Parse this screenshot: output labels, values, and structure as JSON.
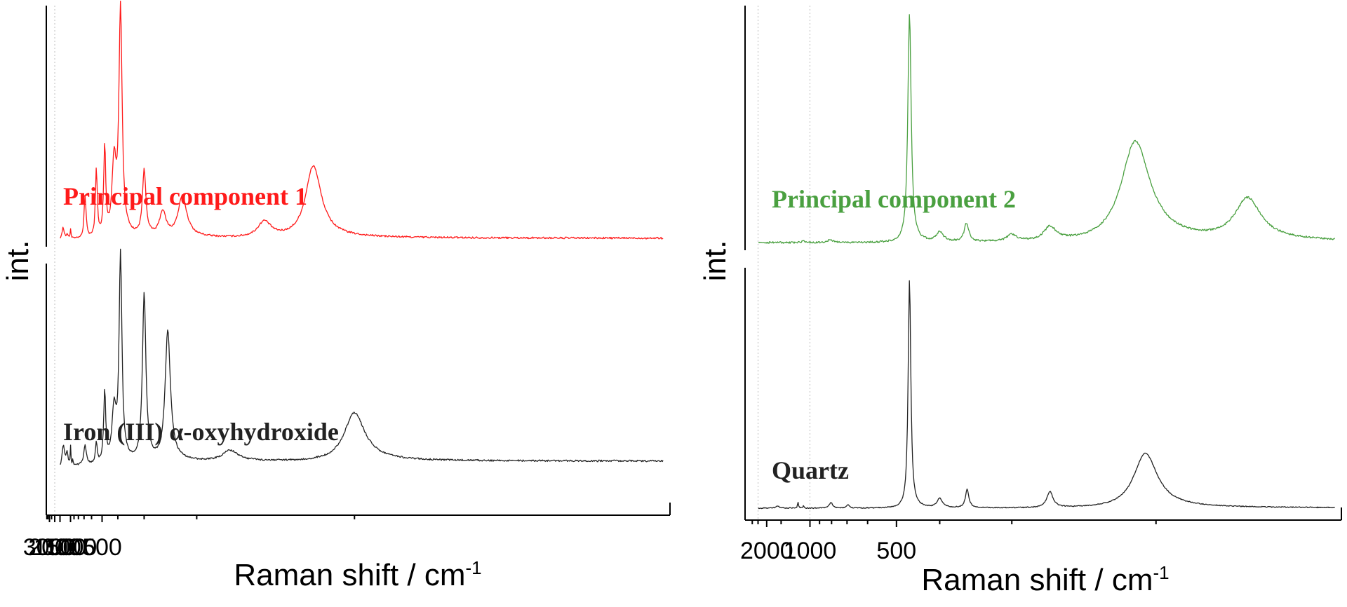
{
  "chart_data": [
    {
      "type": "line",
      "xlabel": "Raman shift / cm",
      "xlabel_sup": "-1",
      "ylabel": "int.",
      "x_axis": "reciprocal",
      "xlim": [
        4300,
        50
      ],
      "major_ticks": [
        3000,
        2000,
        1500,
        1000,
        500
      ],
      "tick_labels": [
        "3000",
        "2000",
        "1500",
        "1000",
        "500"
      ],
      "minor_ticks": [
        4000,
        3500,
        2500,
        900,
        800,
        700,
        600,
        400,
        300,
        200,
        100
      ],
      "grid": "dotted vertical at 2000",
      "series": [
        {
          "name": "Principal component 1",
          "color": "#ff1a1a",
          "baseline": 0.0,
          "noise": 0.004,
          "peaks": [
            {
              "x": 1310,
              "h": 0.055,
              "w": 60
            },
            {
              "x": 1120,
              "h": 0.02,
              "w": 35
            },
            {
              "x": 1000,
              "h": 0.045,
              "w": 14
            },
            {
              "x": 685,
              "h": 0.19,
              "w": 18
            },
            {
              "x": 550,
              "h": 0.3,
              "w": 11
            },
            {
              "x": 480,
              "h": 0.4,
              "w": 9
            },
            {
              "x": 420,
              "h": 0.33,
              "w": 14
            },
            {
              "x": 387,
              "h": 1.0,
              "w": 9
            },
            {
              "x": 300,
              "h": 0.29,
              "w": 6
            },
            {
              "x": 255,
              "h": 0.11,
              "w": 8
            },
            {
              "x": 220,
              "h": 0.18,
              "w": 8
            },
            {
              "x": 140,
              "h": 0.07,
              "w": 5
            },
            {
              "x": 115,
              "h": 0.32,
              "w": 4
            }
          ]
        },
        {
          "name": "Iron (III) α-oxyhydroxide",
          "color": "#222222",
          "baseline": 0.0,
          "slope": 0.2,
          "noise": 0.004,
          "peaks": [
            {
              "x": 2930,
              "h": 0.02,
              "w": 15
            },
            {
              "x": 1660,
              "h": 0.02,
              "w": 60
            },
            {
              "x": 1300,
              "h": 0.11,
              "w": 90
            },
            {
              "x": 1120,
              "h": 0.06,
              "w": 40
            },
            {
              "x": 1000,
              "h": 0.09,
              "w": 12
            },
            {
              "x": 930,
              "h": 0.03,
              "w": 10
            },
            {
              "x": 685,
              "h": 0.09,
              "w": 22
            },
            {
              "x": 550,
              "h": 0.1,
              "w": 10
            },
            {
              "x": 480,
              "h": 0.34,
              "w": 9
            },
            {
              "x": 420,
              "h": 0.25,
              "w": 14
            },
            {
              "x": 387,
              "h": 0.97,
              "w": 8
            },
            {
              "x": 300,
              "h": 0.79,
              "w": 6
            },
            {
              "x": 245,
              "h": 0.62,
              "w": 6
            },
            {
              "x": 165,
              "h": 0.05,
              "w": 8
            },
            {
              "x": 100,
              "h": 0.23,
              "w": 4
            }
          ]
        }
      ]
    },
    {
      "type": "line",
      "xlabel": "Raman shift / cm",
      "xlabel_sup": "-1",
      "ylabel": "int.",
      "x_axis": "reciprocal",
      "xlim": [
        4000,
        140
      ],
      "major_ticks": [
        2000,
        1000,
        500
      ],
      "tick_labels": [
        "2000",
        "1000",
        "500"
      ],
      "minor_ticks": [
        3000,
        2500,
        1500,
        900,
        800,
        700,
        600,
        400,
        300,
        200
      ],
      "grid": "dotted vertical at 2500 and 1000",
      "series": [
        {
          "name": "Principal component 2",
          "color": "#4aa040",
          "baseline": 0.0,
          "noise": 0.004,
          "peaks": [
            {
              "x": 3650,
              "h": 0.012,
              "w": 50
            },
            {
              "x": 1080,
              "h": 0.01,
              "w": 20
            },
            {
              "x": 810,
              "h": 0.015,
              "w": 20
            },
            {
              "x": 465,
              "h": 1.0,
              "w": 5
            },
            {
              "x": 400,
              "h": 0.04,
              "w": 8
            },
            {
              "x": 356,
              "h": 0.08,
              "w": 4
            },
            {
              "x": 300,
              "h": 0.03,
              "w": 6
            },
            {
              "x": 265,
              "h": 0.06,
              "w": 6
            },
            {
              "x": 210,
              "h": 0.44,
              "w": 9
            },
            {
              "x": 165,
              "h": 0.18,
              "w": 5
            }
          ]
        },
        {
          "name": "Quartz",
          "color": "#222222",
          "baseline": 0.0,
          "noise": 0.002,
          "peaks": [
            {
              "x": 1600,
              "h": 0.01,
              "w": 60
            },
            {
              "x": 1160,
              "h": 0.025,
              "w": 10
            },
            {
              "x": 1080,
              "h": 0.012,
              "w": 8
            },
            {
              "x": 805,
              "h": 0.025,
              "w": 15
            },
            {
              "x": 695,
              "h": 0.015,
              "w": 8
            },
            {
              "x": 465,
              "h": 1.0,
              "w": 4
            },
            {
              "x": 400,
              "h": 0.04,
              "w": 6
            },
            {
              "x": 355,
              "h": 0.08,
              "w": 3
            },
            {
              "x": 265,
              "h": 0.07,
              "w": 3
            },
            {
              "x": 205,
              "h": 0.24,
              "w": 7
            }
          ]
        }
      ]
    }
  ]
}
